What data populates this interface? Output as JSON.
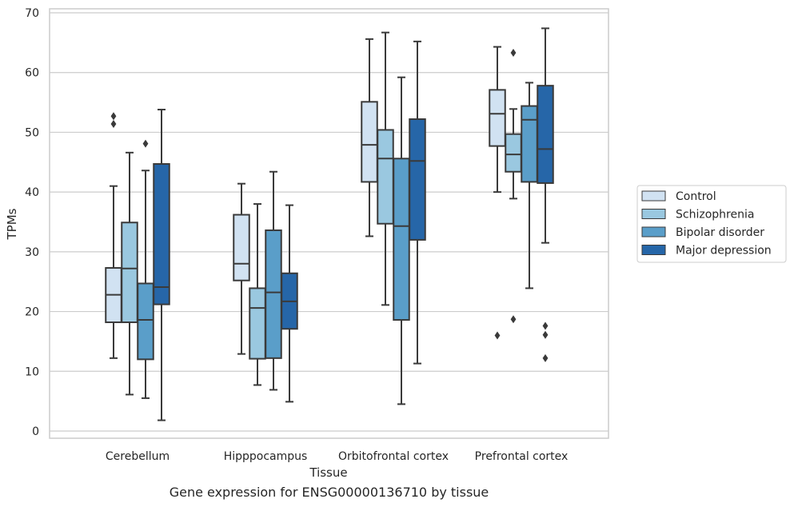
{
  "caption": "Gene expression for ENSG00000136710 by tissue",
  "chart_data": {
    "type": "boxplot",
    "xlabel": "Tissue",
    "ylabel": "TPMs",
    "ylim": [
      -1,
      71
    ],
    "yticks": [
      0,
      10,
      20,
      30,
      40,
      50,
      60,
      70
    ],
    "grid": "horizontal",
    "legend_position": "right",
    "categories": [
      "Cerebellum",
      "Hipppocampus",
      "Orbitofrontal cortex",
      "Prefrontal cortex"
    ],
    "series": [
      {
        "name": "Control",
        "color": "#d1e2f2",
        "boxes": [
          {
            "whislo": 12.2,
            "q1": 18.2,
            "med": 22.8,
            "q3": 27.3,
            "whishi": 41.0,
            "fliers": [
              51.4,
              52.7
            ]
          },
          {
            "whislo": 12.9,
            "q1": 25.2,
            "med": 28.0,
            "q3": 36.2,
            "whishi": 41.4,
            "fliers": []
          },
          {
            "whislo": 32.6,
            "q1": 41.7,
            "med": 47.9,
            "q3": 55.1,
            "whishi": 65.6,
            "fliers": []
          },
          {
            "whislo": 40.0,
            "q1": 47.7,
            "med": 53.1,
            "q3": 57.1,
            "whishi": 64.3,
            "fliers": [
              16.0
            ]
          }
        ]
      },
      {
        "name": "Schizophrenia",
        "color": "#9ac8e0",
        "boxes": [
          {
            "whislo": 6.1,
            "q1": 18.2,
            "med": 27.2,
            "q3": 34.9,
            "whishi": 46.6,
            "fliers": []
          },
          {
            "whislo": 7.7,
            "q1": 12.1,
            "med": 20.6,
            "q3": 23.9,
            "whishi": 38.0,
            "fliers": []
          },
          {
            "whislo": 21.1,
            "q1": 34.7,
            "med": 45.6,
            "q3": 50.4,
            "whishi": 66.7,
            "fliers": []
          },
          {
            "whislo": 38.9,
            "q1": 43.4,
            "med": 46.3,
            "q3": 49.7,
            "whishi": 53.9,
            "fliers": [
              18.7,
              63.3
            ]
          }
        ]
      },
      {
        "name": "Bipolar disorder",
        "color": "#5a9ec9",
        "boxes": [
          {
            "whislo": 5.5,
            "q1": 12.0,
            "med": 18.6,
            "q3": 24.7,
            "whishi": 43.6,
            "fliers": [
              48.1
            ]
          },
          {
            "whislo": 6.9,
            "q1": 12.2,
            "med": 23.2,
            "q3": 33.6,
            "whishi": 43.4,
            "fliers": []
          },
          {
            "whislo": 4.5,
            "q1": 18.6,
            "med": 34.3,
            "q3": 45.6,
            "whishi": 59.2,
            "fliers": []
          },
          {
            "whislo": 23.9,
            "q1": 41.7,
            "med": 52.1,
            "q3": 54.4,
            "whishi": 58.3,
            "fliers": []
          }
        ]
      },
      {
        "name": "Major depression",
        "color": "#2666a8",
        "boxes": [
          {
            "whislo": 1.8,
            "q1": 21.2,
            "med": 24.1,
            "q3": 44.7,
            "whishi": 53.8,
            "fliers": []
          },
          {
            "whislo": 4.9,
            "q1": 17.1,
            "med": 21.7,
            "q3": 26.4,
            "whishi": 37.8,
            "fliers": []
          },
          {
            "whislo": 11.3,
            "q1": 32.0,
            "med": 45.2,
            "q3": 52.2,
            "whishi": 65.2,
            "fliers": []
          },
          {
            "whislo": 31.5,
            "q1": 41.5,
            "med": 47.2,
            "q3": 57.8,
            "whishi": 67.4,
            "fliers": [
              12.2,
              16.1,
              17.6
            ]
          }
        ]
      }
    ]
  }
}
